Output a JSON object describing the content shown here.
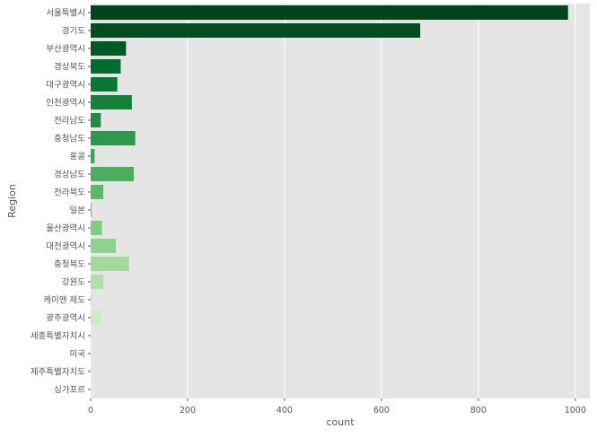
{
  "chart_data": {
    "type": "bar",
    "orientation": "horizontal",
    "xlabel": "count",
    "ylabel": "Region",
    "xlim": [
      0,
      1030
    ],
    "xticks": [
      0,
      200,
      400,
      600,
      800,
      1000
    ],
    "grid": true,
    "categories": [
      "서울특별시",
      "경기도",
      "부산광역시",
      "경상북도",
      "대구광역시",
      "인천광역시",
      "전라남도",
      "충청남도",
      "홍콩",
      "경상남도",
      "전라북도",
      "일본",
      "울산광역시",
      "대전광역시",
      "충청북도",
      "강원도",
      "케이맨 제도",
      "광주광역시",
      "세종특별자치시",
      "미국",
      "제주특별자치도",
      "싱가포르"
    ],
    "values": [
      985,
      680,
      73,
      62,
      55,
      85,
      21,
      92,
      8,
      89,
      26,
      2,
      23,
      52,
      79,
      26,
      2,
      21,
      1,
      1,
      1,
      1
    ],
    "colors": [
      "#00441b",
      "#004d21",
      "#005a28",
      "#016c30",
      "#0b7734",
      "#15803a",
      "#218c41",
      "#2e974b",
      "#3da354",
      "#4eae5f",
      "#5db96a",
      "#6cc275",
      "#7dca82",
      "#8fd28f",
      "#a1da9c",
      "#b1e0ab",
      "#bfe6b9",
      "#cbebc5",
      "#d6efd0",
      "#e1f3dc",
      "#eaf7e6",
      "#f3faf1"
    ],
    "background": "#e5e5e5"
  }
}
